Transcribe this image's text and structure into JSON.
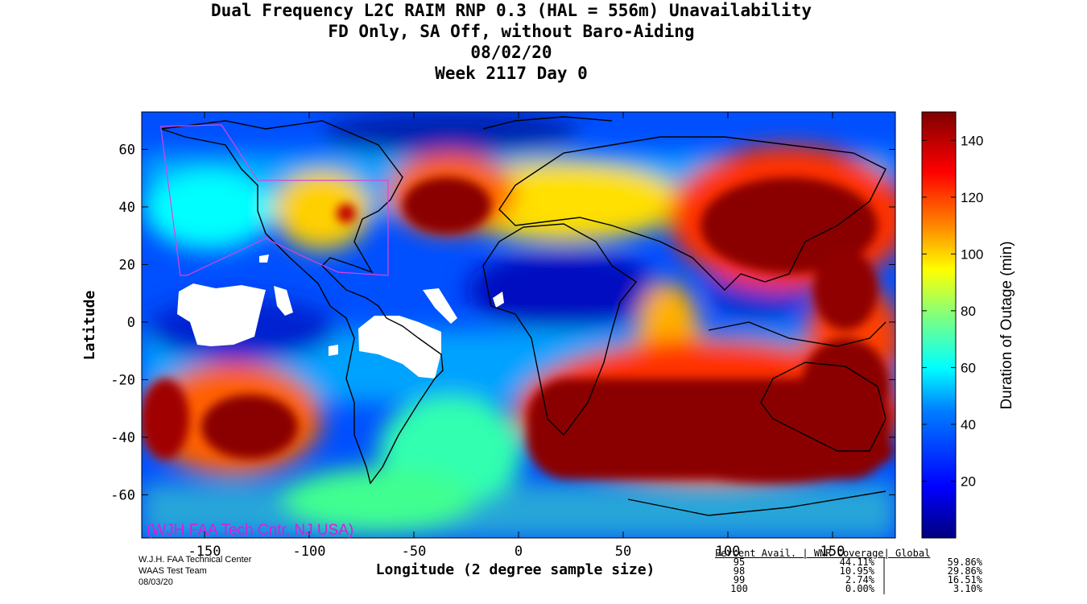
{
  "title": {
    "line1": "Dual Frequency L2C RAIM RNP 0.3 (HAL = 556m) Unavailability",
    "line2": "FD Only, SA Off, without Baro-Aiding",
    "line3": "08/02/20",
    "line4": "Week 2117 Day 0"
  },
  "axes": {
    "xlabel": "Longitude (2 degree sample size)",
    "ylabel": "Latitude",
    "xlim": [
      -180,
      180
    ],
    "ylim": [
      -75,
      73
    ],
    "x_ticks": [
      "-150",
      "-100",
      "-50",
      "0",
      "50",
      "100",
      "150"
    ],
    "x_tick_values": [
      -150,
      -100,
      -50,
      0,
      50,
      100,
      150
    ],
    "y_ticks": [
      "60",
      "40",
      "20",
      "0",
      "-20",
      "-40",
      "-60"
    ],
    "y_tick_values": [
      60,
      40,
      20,
      0,
      -20,
      -40,
      -60
    ]
  },
  "colorbar": {
    "label": "Duration of Outage (min)",
    "range": [
      0,
      150
    ],
    "ticks": [
      "140",
      "120",
      "100",
      "80",
      "60",
      "40",
      "20"
    ],
    "tick_values": [
      140,
      120,
      100,
      80,
      60,
      40,
      20
    ],
    "colors": [
      "#00007f",
      "#0000ff",
      "#007fff",
      "#00ffff",
      "#7fff7f",
      "#ffff00",
      "#ff7f00",
      "#ff0000",
      "#7f0000"
    ]
  },
  "watermark": "(WJH FAA Tech Cntr, NJ USA)",
  "credit": {
    "line1": "W.J.H. FAA Technical Center",
    "line2": "WAAS Test Team",
    "line3": "08/03/20"
  },
  "stats": {
    "header": "Percent Avail. | WNR Coverage| Global",
    "rows": [
      {
        "pct": "95",
        "wnr": "44.11%",
        "sep": "|",
        "global": "59.86%"
      },
      {
        "pct": "98",
        "wnr": "10.95%",
        "sep": "|",
        "global": "29.86%"
      },
      {
        "pct": "99",
        "wnr": "2.74%",
        "sep": "|",
        "global": "16.51%"
      },
      {
        "pct": "100",
        "wnr": "0.00%",
        "sep": "|",
        "global": "3.10%"
      }
    ]
  },
  "chart_data": {
    "type": "heatmap",
    "description_units": "Duration of Outage (min) by longitude/latitude",
    "regions": [
      {
        "lon": [
          -120,
          -70
        ],
        "lat": [
          -55,
          -20
        ],
        "value": 135
      },
      {
        "lon": [
          -180,
          -150
        ],
        "lat": [
          -50,
          -20
        ],
        "value": 130
      },
      {
        "lon": [
          -50,
          -20
        ],
        "lat": [
          30,
          48
        ],
        "value": 145
      },
      {
        "lon": [
          5,
          180
        ],
        "lat": [
          -60,
          -25
        ],
        "value": 145
      },
      {
        "lon": [
          80,
          170
        ],
        "lat": [
          10,
          50
        ],
        "value": 145
      },
      {
        "lon": [
          130,
          180
        ],
        "lat": [
          -40,
          0
        ],
        "value": 135
      },
      {
        "lon": [
          -10,
          60
        ],
        "lat": [
          25,
          45
        ],
        "value": 100
      },
      {
        "lon": [
          -20,
          60
        ],
        "lat": [
          -10,
          15
        ],
        "value": 10
      },
      {
        "lon": [
          -180,
          -130
        ],
        "lat": [
          -10,
          20
        ],
        "value": 15
      },
      {
        "lon": [
          -180,
          180
        ],
        "lat": [
          60,
          73
        ],
        "value": 25
      },
      {
        "lon": [
          -180,
          180
        ],
        "lat": [
          -75,
          -60
        ],
        "value": 50
      }
    ],
    "no_data_regions": [
      {
        "lon": [
          -160,
          -120
        ],
        "lat": [
          -10,
          10
        ]
      },
      {
        "lon": [
          -75,
          -35
        ],
        "lat": [
          -20,
          5
        ]
      },
      {
        "lon": [
          -40,
          -30
        ],
        "lat": [
          0,
          10
        ]
      },
      {
        "lon": [
          -120,
          -110
        ],
        "lat": [
          22,
          26
        ]
      }
    ]
  }
}
